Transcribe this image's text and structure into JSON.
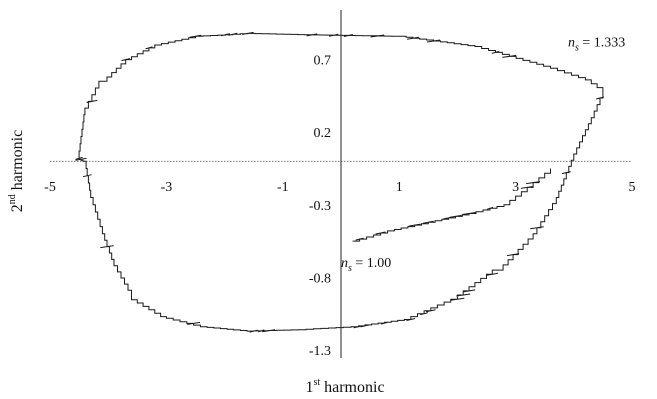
{
  "chart_data": {
    "type": "line",
    "title": "",
    "xlabel": {
      "base": "1",
      "sup": "st",
      "rest": " harmonic"
    },
    "ylabel": {
      "base": "2",
      "sup": "nd",
      "rest": " harmonic"
    },
    "xlim": [
      -5,
      5
    ],
    "ylim": [
      -1.3,
      1.0
    ],
    "x_ticks": [
      -5,
      -3,
      -1,
      1,
      3,
      5
    ],
    "x_tick_labels": [
      "-5",
      "-3",
      "-1",
      "1",
      "3",
      "5"
    ],
    "y_ticks": [
      0.7,
      0.2,
      -0.3,
      -0.8,
      -1.3
    ],
    "y_tick_labels": [
      "0.7",
      "0.2",
      "-0.3",
      "-0.8",
      "-1.3"
    ],
    "grid": false,
    "series": [
      {
        "color": "#1a1a1a",
        "x": [
          -0.5,
          1.0,
          2.3,
          3.6,
          4.2,
          4.5,
          4.3,
          4.0,
          3.7,
          3.3,
          2.7,
          2.0,
          1.2,
          0.3,
          -0.6,
          -1.5,
          -2.3,
          -3.0,
          -3.6,
          -3.9,
          -4.1,
          -4.3,
          -4.4,
          -4.5,
          -4.4,
          -4.1,
          -3.7,
          -3.2,
          -2.5,
          -1.6,
          -0.5
        ],
        "y": [
          0.87,
          0.86,
          0.79,
          0.64,
          0.56,
          0.48,
          0.3,
          0.05,
          -0.25,
          -0.5,
          -0.75,
          -0.95,
          -1.09,
          -1.14,
          -1.16,
          -1.17,
          -1.14,
          -1.07,
          -0.93,
          -0.72,
          -0.5,
          -0.25,
          0.0,
          0.02,
          0.32,
          0.55,
          0.7,
          0.8,
          0.86,
          0.88,
          0.87
        ]
      },
      {
        "color": "#1a1a1a",
        "x": [
          0.2,
          0.8,
          1.5,
          2.2,
          2.8,
          3.2,
          3.6
        ],
        "y": [
          -0.55,
          -0.48,
          -0.42,
          -0.36,
          -0.3,
          -0.18,
          -0.05
        ]
      }
    ],
    "annotations": [
      {
        "main": "n",
        "sub": "s",
        "text": " = 1.333",
        "x": 3.9,
        "y": 0.79
      },
      {
        "main": "n",
        "sub": "s",
        "text": " = 1.00",
        "x": 0.0,
        "y": -0.73
      }
    ]
  }
}
